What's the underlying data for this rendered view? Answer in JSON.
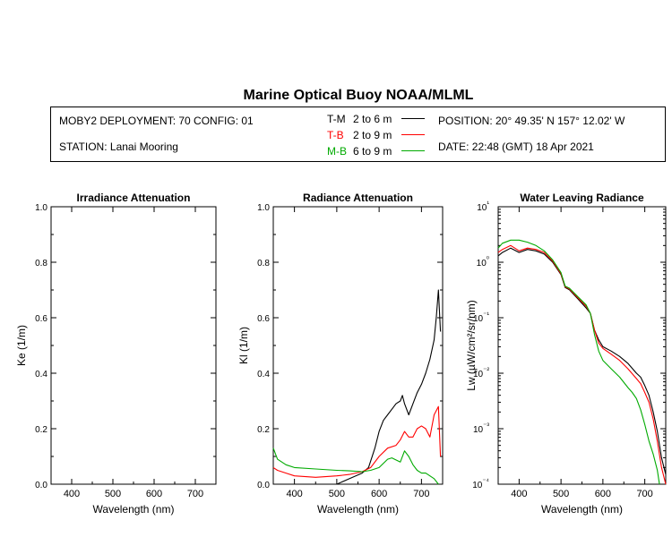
{
  "title": "Marine Optical Buoy NOAA/MLML",
  "info": {
    "deployment": "MOBY2 DEPLOYMENT: 70 CONFIG: 01",
    "station": "STATION: Lanai Mooring",
    "position": "POSITION: 20° 49.35' N   157° 12.02' W",
    "date": "DATE: 22:48 (GMT) 18 Apr 2021",
    "legend": [
      {
        "tag": "T-M",
        "range": "2 to 6  m",
        "color": "#000000"
      },
      {
        "tag": "T-B",
        "range": "2 to 9  m",
        "color": "#ff0000"
      },
      {
        "tag": "M-B",
        "range": "6 to 9  m",
        "color": "#00aa00"
      }
    ]
  },
  "chart_data": [
    {
      "type": "line",
      "title": "Irradiance Attenuation",
      "xlabel": "Wavelength (nm)",
      "ylabel": "Ke  (1/m)",
      "xlim": [
        350,
        750
      ],
      "ylim": [
        0,
        1
      ],
      "xticks": [
        400,
        500,
        600,
        700
      ],
      "yticks": [
        "0.0",
        "0.2",
        "0.4",
        "0.6",
        "0.8",
        "1.0"
      ],
      "series": []
    },
    {
      "type": "line",
      "title": "Radiance Attenuation",
      "xlabel": "Wavelength (nm)",
      "ylabel": "Kl  (1/m)",
      "xlim": [
        350,
        750
      ],
      "ylim": [
        0,
        1
      ],
      "xticks": [
        400,
        500,
        600,
        700
      ],
      "yticks": [
        "0.0",
        "0.2",
        "0.4",
        "0.6",
        "0.8",
        "1.0"
      ],
      "series": [
        {
          "name": "T-M",
          "color": "#000000",
          "x": [
            350,
            370,
            400,
            450,
            500,
            530,
            560,
            575,
            590,
            600,
            610,
            620,
            630,
            640,
            650,
            655,
            660,
            670,
            680,
            690,
            700,
            710,
            720,
            730,
            735,
            740,
            745
          ],
          "y": [
            0.0,
            0.0,
            0.0,
            0.0,
            0.0,
            0.02,
            0.04,
            0.06,
            0.13,
            0.19,
            0.23,
            0.25,
            0.27,
            0.29,
            0.3,
            0.32,
            0.29,
            0.25,
            0.29,
            0.33,
            0.36,
            0.4,
            0.45,
            0.52,
            0.6,
            0.7,
            0.55
          ]
        },
        {
          "name": "T-B",
          "color": "#ff0000",
          "x": [
            350,
            360,
            380,
            400,
            450,
            500,
            530,
            560,
            580,
            600,
            620,
            640,
            650,
            660,
            670,
            680,
            690,
            700,
            710,
            720,
            730,
            740,
            745
          ],
          "y": [
            0.06,
            0.05,
            0.04,
            0.03,
            0.025,
            0.03,
            0.035,
            0.045,
            0.06,
            0.1,
            0.13,
            0.14,
            0.16,
            0.19,
            0.17,
            0.17,
            0.2,
            0.21,
            0.2,
            0.17,
            0.25,
            0.28,
            0.1
          ]
        },
        {
          "name": "M-B",
          "color": "#00aa00",
          "x": [
            350,
            360,
            380,
            400,
            450,
            500,
            530,
            560,
            580,
            600,
            620,
            630,
            650,
            660,
            670,
            680,
            690,
            700,
            710,
            720,
            730,
            740
          ],
          "y": [
            0.13,
            0.09,
            0.07,
            0.06,
            0.055,
            0.05,
            0.048,
            0.045,
            0.05,
            0.06,
            0.09,
            0.095,
            0.08,
            0.12,
            0.1,
            0.07,
            0.05,
            0.04,
            0.04,
            0.03,
            0.02,
            0.0
          ]
        }
      ]
    },
    {
      "type": "line",
      "title": "Water Leaving Radiance",
      "xlabel": "Wavelength (nm)",
      "ylabel": "Lw  (µW/cm²/sr/nm)",
      "xlim": [
        350,
        750
      ],
      "ylim": [
        0.0001,
        10
      ],
      "yscale": "log",
      "xticks": [
        400,
        500,
        600,
        700
      ],
      "yticks": [
        "10⁻⁴",
        "10⁻³",
        "10⁻²",
        "10⁻¹",
        "10⁰",
        "10¹"
      ],
      "series": [
        {
          "name": "T-M",
          "color": "#000000",
          "x": [
            350,
            360,
            380,
            400,
            420,
            440,
            460,
            480,
            500,
            510,
            520,
            540,
            560,
            570,
            580,
            590,
            600,
            620,
            640,
            660,
            680,
            690,
            700,
            710,
            720,
            730,
            740,
            750
          ],
          "y": [
            1.3,
            1.5,
            1.8,
            1.5,
            1.7,
            1.6,
            1.4,
            1.0,
            0.6,
            0.35,
            0.32,
            0.22,
            0.15,
            0.12,
            0.06,
            0.04,
            0.03,
            0.025,
            0.02,
            0.015,
            0.01,
            0.0085,
            0.006,
            0.004,
            0.002,
            0.0009,
            0.0003,
            0.00015
          ]
        },
        {
          "name": "T-B",
          "color": "#ff0000",
          "x": [
            350,
            360,
            380,
            400,
            420,
            440,
            460,
            480,
            500,
            510,
            520,
            540,
            560,
            570,
            580,
            590,
            600,
            620,
            640,
            660,
            680,
            690,
            700,
            710,
            720,
            730,
            740,
            750
          ],
          "y": [
            1.5,
            1.7,
            2.0,
            1.6,
            1.8,
            1.7,
            1.5,
            1.05,
            0.62,
            0.36,
            0.33,
            0.23,
            0.16,
            0.12,
            0.06,
            0.035,
            0.028,
            0.022,
            0.017,
            0.012,
            0.008,
            0.0065,
            0.0045,
            0.003,
            0.0015,
            0.0006,
            0.0002,
            0.0001
          ]
        },
        {
          "name": "M-B",
          "color": "#00aa00",
          "x": [
            350,
            360,
            380,
            400,
            420,
            440,
            460,
            480,
            500,
            510,
            520,
            540,
            560,
            570,
            580,
            590,
            600,
            620,
            640,
            660,
            670,
            680,
            690,
            700,
            710,
            720,
            730,
            735
          ],
          "y": [
            1.8,
            2.2,
            2.5,
            2.5,
            2.3,
            2.0,
            1.6,
            1.1,
            0.65,
            0.37,
            0.34,
            0.24,
            0.17,
            0.12,
            0.05,
            0.025,
            0.017,
            0.012,
            0.0085,
            0.0055,
            0.0045,
            0.0035,
            0.0022,
            0.0012,
            0.0006,
            0.00035,
            0.00018,
            0.0001
          ]
        }
      ]
    }
  ]
}
